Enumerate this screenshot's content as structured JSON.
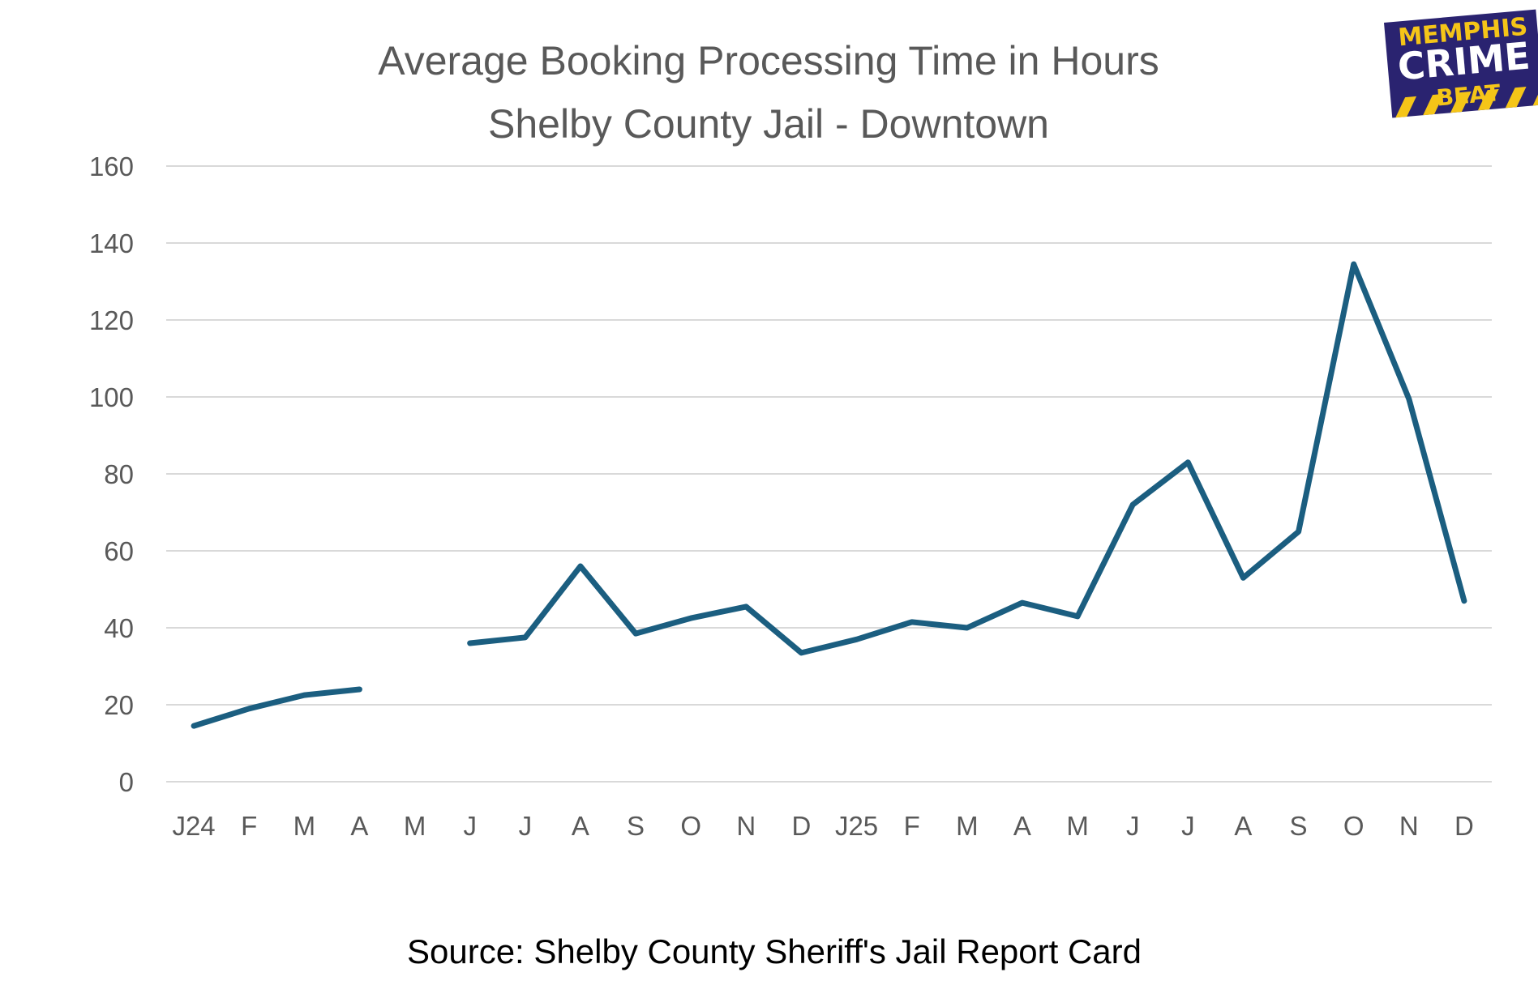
{
  "chart_data": {
    "type": "line",
    "title": "Average Booking Processing Time in Hours",
    "subtitle": "Shelby County Jail - Downtown",
    "source": "Source: Shelby County Sheriff's Jail Report Card",
    "categories": [
      "J24",
      "F",
      "M",
      "A",
      "M",
      "J",
      "J",
      "A",
      "S",
      "O",
      "N",
      "D",
      "J25",
      "F",
      "M",
      "A",
      "M",
      "J",
      "J",
      "A",
      "S",
      "O",
      "N",
      "D"
    ],
    "series": [
      {
        "values": [
          14.5,
          19,
          22.5,
          24,
          null,
          36,
          37.5,
          56,
          38.5,
          42.5,
          45.5,
          33.5,
          37,
          41.5,
          40,
          46.5,
          43,
          72,
          83,
          53,
          65,
          134.5,
          99.5,
          47
        ],
        "color": "#1b5e80"
      }
    ],
    "yticks": [
      0,
      20,
      40,
      60,
      80,
      100,
      120,
      140,
      160
    ],
    "ylim": [
      0,
      160
    ],
    "grid": true,
    "gridColor": "#d9d9d9",
    "legend": "none"
  },
  "logo": {
    "line1": "MEMPHIS",
    "line2": "CRIME",
    "line3": "BEAT",
    "bgColor": "#2a2370",
    "accentColor": "#f5c518",
    "textColor": "#ffffff"
  }
}
